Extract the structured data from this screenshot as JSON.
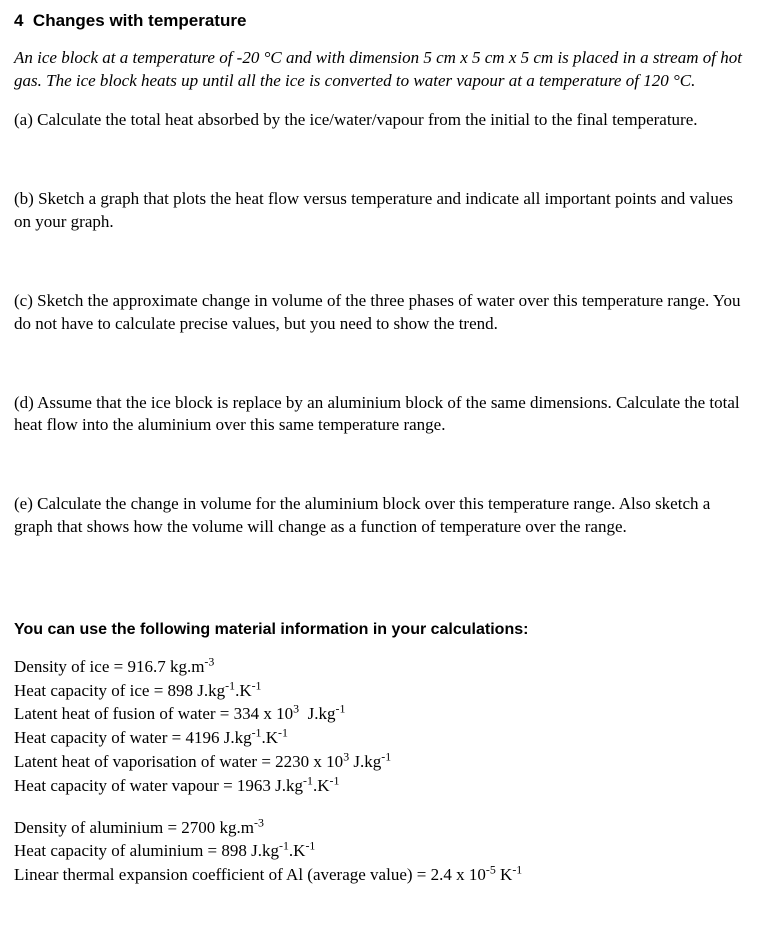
{
  "section": {
    "number": "4",
    "title": "Changes with temperature"
  },
  "intro": "An ice block at a temperature of -20 °C and with dimension 5 cm x 5 cm x 5 cm is placed in a stream of hot gas. The ice block heats up until all the ice is converted to water vapour at a temperature of 120 °C.",
  "q": {
    "a": "(a) Calculate the total heat absorbed by the ice/water/vapour from the initial to the final temperature.",
    "b": "(b) Sketch a graph that plots the heat flow versus temperature and indicate all important points and values on your graph.",
    "c": "(c) Sketch the approximate change in volume of the three phases of water over this temperature range. You do not have to calculate precise values, but you need to show the trend.",
    "d": "(d) Assume that the ice block is replace by an aluminium block of the same dimensions. Calculate the total heat flow into the aluminium over this same temperature range.",
    "e": "(e) Calculate the change in volume for the aluminium block over this temperature range. Also sketch a graph that shows how the volume will change as a function of temperature over the range."
  },
  "info_heading": "You can use the following material information in your calculations:",
  "info": {
    "w1_html": "Density of ice = 916.7 kg.m<sup>-3</sup>",
    "w2_html": "Heat capacity of ice = 898 J.kg<sup>-1</sup>.K<sup>-1</sup>",
    "w3_html": "Latent heat of fusion of water = 334 x 10<sup>3</sup>&nbsp; J.kg<sup>-1</sup>",
    "w4_html": "Heat capacity of water = 4196 J.kg<sup>-1</sup>.K<sup>-1</sup>",
    "w5_html": "Latent heat of vaporisation of water = 2230 x 10<sup>3</sup> J.kg<sup>-1</sup>",
    "w6_html": "Heat capacity of water vapour = 1963 J.kg<sup>-1</sup>.K<sup>-1</sup>",
    "a1_html": "Density of aluminium = 2700 kg.m<sup>-3</sup>",
    "a2_html": "Heat capacity of aluminium = 898 J.kg<sup>-1</sup>.K<sup>-1</sup>",
    "a3_html": "Linear thermal expansion coefficient of Al (average value) = 2.4 x 10<sup>-5</sup> K<sup>-1</sup>"
  }
}
